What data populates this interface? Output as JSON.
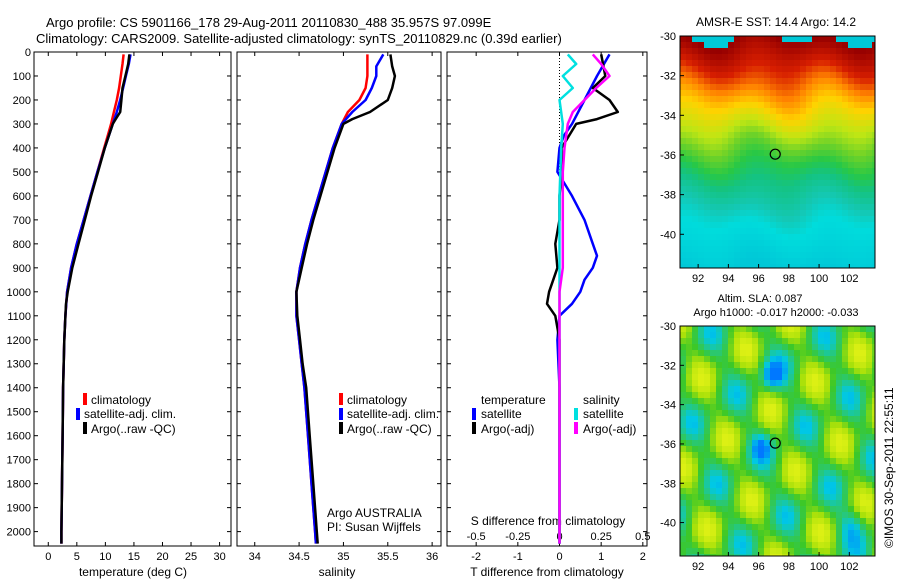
{
  "header": {
    "line1": "Argo profile: CS 5901166_178 29-Aug-2011 20110830_488 35.957S 97.099E",
    "line2": "Climatology: CARS2009. Satellite-adjusted climatology: synTS_20110829.nc (0.39d earlier)"
  },
  "colors": {
    "climatology": "#ff0000",
    "satellite": "#0000ff",
    "argo": "#000000",
    "s_satellite": "#00e0e0",
    "s_argo": "#ff00ff"
  },
  "depth_ticks": [
    "0",
    "100",
    "200",
    "300",
    "400",
    "500",
    "600",
    "700",
    "800",
    "900",
    "1000",
    "1100",
    "1200",
    "1300",
    "1400",
    "1500",
    "1600",
    "1700",
    "1800",
    "1900",
    "2000"
  ],
  "chart_data": [
    {
      "type": "line",
      "xlabel": "temperature (deg C)",
      "ylabel": "",
      "xticks": [
        "0",
        "5",
        "10",
        "15",
        "20",
        "25",
        "30"
      ],
      "xlim": [
        -2.5,
        32
      ],
      "ylim": [
        2060,
        0
      ],
      "legend": [
        "climatology",
        "satellite-adj. clim.",
        "Argo(..raw -QC)"
      ],
      "series": [
        {
          "name": "climatology",
          "depth": [
            10,
            50,
            100,
            150,
            200,
            250,
            300,
            350,
            400,
            500,
            600,
            700,
            800,
            900,
            1000,
            1100,
            1200,
            1400,
            1600,
            1800,
            2000,
            2050
          ],
          "values": [
            13.2,
            13.0,
            12.7,
            12.4,
            12.0,
            11.5,
            11.0,
            10.4,
            9.8,
            8.6,
            7.4,
            6.2,
            5.0,
            4.0,
            3.3,
            3.0,
            2.8,
            2.6,
            2.5,
            2.4,
            2.3,
            2.3
          ]
        },
        {
          "name": "satellite-adj. clim.",
          "depth": [
            10,
            50,
            100,
            150,
            200,
            250,
            300,
            350,
            400,
            500,
            600,
            700,
            800,
            900,
            1000,
            1100,
            1200,
            1400,
            1600,
            1800,
            2000,
            2050
          ],
          "values": [
            14.4,
            14.1,
            13.6,
            13.1,
            12.6,
            12.0,
            11.3,
            10.6,
            9.9,
            8.6,
            7.4,
            6.2,
            5.0,
            4.0,
            3.3,
            3.0,
            2.8,
            2.6,
            2.5,
            2.4,
            2.3,
            2.3
          ]
        },
        {
          "name": "Argo(..raw -QC)",
          "depth": [
            10,
            50,
            100,
            150,
            200,
            250,
            280,
            300,
            350,
            400,
            500,
            600,
            700,
            800,
            900,
            1000,
            1050,
            1100,
            1200,
            1400,
            1600,
            1800,
            2000,
            2050
          ],
          "values": [
            14.2,
            14.0,
            13.5,
            13.0,
            12.8,
            12.6,
            11.8,
            11.3,
            10.6,
            9.9,
            8.7,
            7.5,
            6.4,
            5.3,
            4.2,
            3.4,
            3.1,
            3.0,
            2.8,
            2.6,
            2.5,
            2.4,
            2.3,
            2.3
          ]
        }
      ]
    },
    {
      "type": "line",
      "xlabel": "salinity",
      "ylabel": "",
      "xticks": [
        "34",
        "34.5",
        "35",
        "35.5",
        "36"
      ],
      "xlim": [
        33.8,
        36.1
      ],
      "ylim": [
        2060,
        0
      ],
      "legend": [
        "climatology",
        "satellite-adj. clim.",
        "Argo(..raw -QC)"
      ],
      "annotation": [
        "Argo AUSTRALIA",
        "PI: Susan Wijffels"
      ],
      "series": [
        {
          "name": "climatology",
          "depth": [
            10,
            100,
            150,
            200,
            250,
            300,
            400,
            500,
            600,
            700,
            800,
            900,
            1000,
            1100,
            1200,
            1300,
            1400,
            1600,
            1800,
            2000,
            2050
          ],
          "values": [
            35.27,
            35.27,
            35.25,
            35.18,
            35.05,
            34.98,
            34.88,
            34.8,
            34.72,
            34.64,
            34.57,
            34.51,
            34.47,
            34.47,
            34.5,
            34.53,
            34.56,
            34.6,
            34.64,
            34.68,
            34.69
          ]
        },
        {
          "name": "satellite-adj. clim.",
          "depth": [
            10,
            60,
            100,
            150,
            200,
            250,
            300,
            400,
            500,
            600,
            700,
            800,
            900,
            1000,
            1100,
            1200,
            1300,
            1400,
            1600,
            1800,
            2000,
            2050
          ],
          "values": [
            35.45,
            35.37,
            35.37,
            35.32,
            35.25,
            35.1,
            34.98,
            34.88,
            34.8,
            34.72,
            34.64,
            34.57,
            34.51,
            34.47,
            34.47,
            34.5,
            34.53,
            34.56,
            34.6,
            34.64,
            34.68,
            34.69
          ]
        },
        {
          "name": "Argo(..raw -QC)",
          "depth": [
            10,
            60,
            100,
            150,
            200,
            250,
            280,
            300,
            400,
            500,
            600,
            700,
            800,
            900,
            1000,
            1100,
            1200,
            1300,
            1400,
            1600,
            1800,
            2000,
            2050
          ],
          "values": [
            35.53,
            35.55,
            35.58,
            35.55,
            35.5,
            35.3,
            35.1,
            35.0,
            34.9,
            34.82,
            34.74,
            34.66,
            34.59,
            34.53,
            34.47,
            34.48,
            34.51,
            34.54,
            34.58,
            34.62,
            34.66,
            34.7,
            34.71
          ]
        }
      ]
    },
    {
      "type": "line",
      "xlabel": "T difference from climatology",
      "top_label": "S difference from climatology",
      "xticks": [
        "-2",
        "-1",
        "0",
        "1",
        "2"
      ],
      "xticks_top": [
        "-0.5",
        "-0.25",
        "0",
        "0.25",
        "0.5"
      ],
      "xlim": [
        -2.7,
        2.1
      ],
      "ylim": [
        2060,
        0
      ],
      "legend_title_left": "temperature",
      "legend_title_right": "salinity",
      "legend": [
        "satellite",
        "Argo(-adj)",
        "satellite",
        "Argo(-adj)"
      ],
      "series": [
        {
          "name": "temperature satellite",
          "depth": [
            10,
            100,
            200,
            300,
            350,
            400,
            500,
            600,
            700,
            800,
            850,
            900,
            950,
            1000,
            1050,
            1100,
            1200,
            1400,
            1600,
            1800,
            2000,
            2050
          ],
          "values": [
            1.2,
            0.9,
            0.6,
            0.3,
            0.1,
            0.0,
            -0.05,
            0.3,
            0.6,
            0.8,
            0.9,
            0.8,
            0.6,
            0.5,
            0.3,
            0.0,
            -0.05,
            0.0,
            0.0,
            0.0,
            0.0,
            0.0
          ]
        },
        {
          "name": "temperature Argo(-adj)",
          "depth": [
            10,
            100,
            150,
            200,
            250,
            280,
            300,
            400,
            500,
            600,
            700,
            800,
            900,
            1000,
            1050,
            1100,
            1200,
            1400,
            1600,
            1800,
            2000,
            2050
          ],
          "values": [
            1.0,
            1.1,
            0.8,
            1.2,
            1.4,
            0.9,
            0.4,
            0.05,
            0.05,
            0.0,
            0.0,
            -0.1,
            -0.05,
            -0.25,
            -0.3,
            -0.1,
            0.0,
            0.0,
            0.0,
            0.0,
            0.0,
            0.0
          ]
        },
        {
          "name": "salinity satellite",
          "depth": [
            10,
            50,
            100,
            150,
            200,
            300,
            400,
            600,
            800,
            1000,
            1200,
            1400,
            1600,
            1800,
            2000,
            2050
          ],
          "values": [
            0.05,
            0.1,
            0.02,
            0.08,
            0.0,
            0.02,
            0.01,
            0.0,
            0.0,
            0.0,
            0.0,
            0.0,
            0.0,
            0.0,
            0.0,
            0.0
          ]
        },
        {
          "name": "salinity Argo(-adj)",
          "depth": [
            10,
            50,
            100,
            150,
            200,
            250,
            300,
            400,
            500,
            600,
            700,
            800,
            900,
            1000,
            1200,
            1400,
            1600,
            1800,
            2000,
            2050
          ],
          "values": [
            0.2,
            0.25,
            0.3,
            0.22,
            0.15,
            0.08,
            0.05,
            0.03,
            0.02,
            0.02,
            0.02,
            0.02,
            0.02,
            0.0,
            0.0,
            0.0,
            0.0,
            0.0,
            0.0,
            0.0
          ]
        }
      ]
    },
    {
      "type": "heatmap",
      "title": "AMSR-E SST: 14.4  Argo: 14.2",
      "xticks": [
        "92",
        "94",
        "96",
        "98",
        "100",
        "102"
      ],
      "yticks": [
        "-30",
        "-32",
        "-34",
        "-36",
        "-38",
        "-40"
      ],
      "xlim": [
        90.8,
        103.7
      ],
      "ylim": [
        -41.7,
        -30
      ],
      "marker": {
        "lon": 97.1,
        "lat": -35.96
      }
    },
    {
      "type": "heatmap",
      "title": "Altim. SLA: 0.087",
      "subtitle": "Argo h1000: -0.017 h2000: -0.033",
      "xticks": [
        "92",
        "94",
        "96",
        "98",
        "100",
        "102"
      ],
      "yticks": [
        "-30",
        "-32",
        "-34",
        "-36",
        "-38",
        "-40"
      ],
      "xlim": [
        90.8,
        103.7
      ],
      "ylim": [
        -41.7,
        -30
      ],
      "marker": {
        "lon": 97.1,
        "lat": -35.96
      }
    }
  ],
  "footer": {
    "imos_stamp": "©IMOS 30-Sep-2011 22:55:11"
  }
}
